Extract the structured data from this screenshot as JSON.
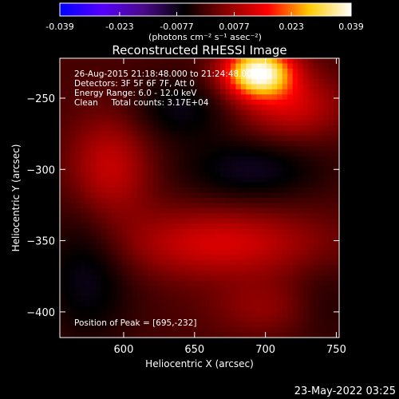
{
  "chart_data": {
    "type": "heatmap",
    "title": "Reconstructed RHESSI Image",
    "xlabel": "Heliocentric X (arcsec)",
    "ylabel": "Heliocentric Y (arcsec)",
    "xlim": [
      555,
      752
    ],
    "ylim": [
      -418,
      -222
    ],
    "x_ticks": [
      600,
      650,
      700,
      750
    ],
    "y_ticks": [
      -250,
      -300,
      -350,
      -400
    ],
    "colorbar": {
      "range": [
        -0.039,
        0.039
      ],
      "ticks": [
        "-0.039",
        "-0.023",
        "-0.0077",
        "0.0077",
        "0.023",
        "0.039"
      ],
      "ticks_num": [
        -0.039,
        -0.023,
        -0.0077,
        0.0077,
        0.023,
        0.039
      ],
      "colors": [
        "#0000ff",
        "#5500ff",
        "#4a0a8a",
        "#000000",
        "#8a0000",
        "#ff0000",
        "#ffcc00",
        "#ffffff"
      ],
      "unit_label": "(photons cm⁻² s⁻¹ asec⁻²)"
    },
    "annotations": [
      "26-Aug-2015 21:18:48.000 to 21:24:48.000",
      "Detectors: 3F 5F 6F 7F, Att 0",
      "Energy Range: 6.0 - 12.0 keV",
      "Clean     Total counts: 3.17E+04"
    ],
    "peak_label": "Position of Peak = [695,-232]",
    "peak": [
      695,
      -232
    ],
    "sources": [
      {
        "x": 695,
        "y": -232,
        "value": 0.039,
        "sx": 17,
        "sy": 12
      },
      {
        "x": 718,
        "y": -256,
        "value": 0.012,
        "sx": 25,
        "sy": 16
      },
      {
        "x": 590,
        "y": -300,
        "value": 0.012,
        "sx": 20,
        "sy": 26
      },
      {
        "x": 668,
        "y": -352,
        "value": 0.013,
        "sx": 50,
        "sy": 17
      },
      {
        "x": 700,
        "y": -397,
        "value": 0.006,
        "sx": 28,
        "sy": 14
      },
      {
        "x": 640,
        "y": -258,
        "value": -0.007,
        "sx": 25,
        "sy": 16
      },
      {
        "x": 690,
        "y": -300,
        "value": -0.008,
        "sx": 35,
        "sy": 16
      },
      {
        "x": 575,
        "y": -370,
        "value": -0.008,
        "sx": 22,
        "sy": 35
      },
      {
        "x": 740,
        "y": -395,
        "value": -0.004,
        "sx": 18,
        "sy": 20
      }
    ]
  },
  "footer": {
    "timestamp": "23-May-2022 03:25"
  }
}
